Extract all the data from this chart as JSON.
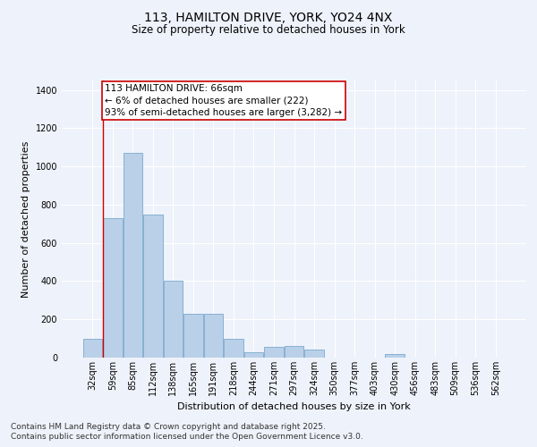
{
  "title_line1": "113, HAMILTON DRIVE, YORK, YO24 4NX",
  "title_line2": "Size of property relative to detached houses in York",
  "xlabel": "Distribution of detached houses by size in York",
  "ylabel": "Number of detached properties",
  "categories": [
    "32sqm",
    "59sqm",
    "85sqm",
    "112sqm",
    "138sqm",
    "165sqm",
    "191sqm",
    "218sqm",
    "244sqm",
    "271sqm",
    "297sqm",
    "324sqm",
    "350sqm",
    "377sqm",
    "403sqm",
    "430sqm",
    "456sqm",
    "483sqm",
    "509sqm",
    "536sqm",
    "562sqm"
  ],
  "values": [
    100,
    730,
    1070,
    750,
    400,
    230,
    230,
    100,
    30,
    55,
    60,
    40,
    0,
    0,
    0,
    20,
    0,
    0,
    0,
    0,
    0
  ],
  "bar_color": "#bad0e8",
  "bar_edge_color": "#7aaace",
  "annotation_text": "113 HAMILTON DRIVE: 66sqm\n← 6% of detached houses are smaller (222)\n93% of semi-detached houses are larger (3,282) →",
  "annotation_box_color": "#ffffff",
  "annotation_border_color": "#cc0000",
  "vline_color": "#cc0000",
  "vline_x_idx": 1,
  "ylim": [
    0,
    1450
  ],
  "yticks": [
    0,
    200,
    400,
    600,
    800,
    1000,
    1200,
    1400
  ],
  "footer_line1": "Contains HM Land Registry data © Crown copyright and database right 2025.",
  "footer_line2": "Contains public sector information licensed under the Open Government Licence v3.0.",
  "background_color": "#eef2fa",
  "plot_bg_color": "#eef2fa",
  "grid_color": "#ffffff",
  "title_fontsize": 10,
  "subtitle_fontsize": 8.5,
  "axis_label_fontsize": 8,
  "tick_fontsize": 7,
  "annotation_fontsize": 7.5,
  "footer_fontsize": 6.5
}
